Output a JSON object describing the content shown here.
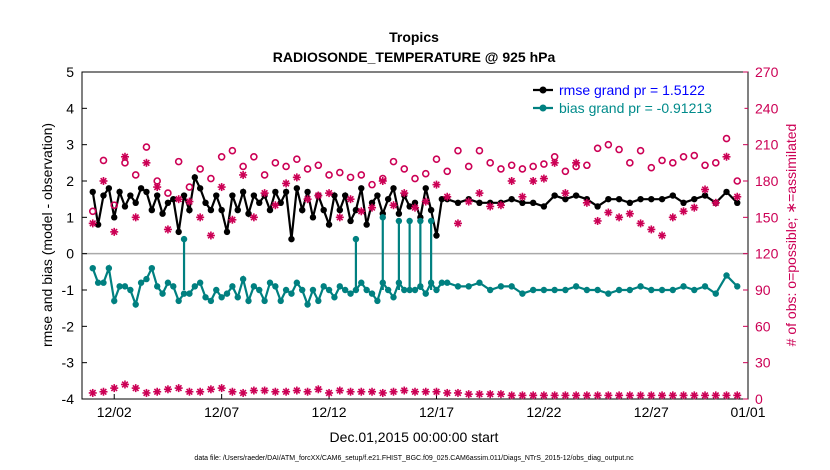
{
  "chart_data": {
    "type": "line",
    "title": "Tropics",
    "subtitle": "RADIOSONDE_TEMPERATURE @ 925 hPa",
    "xlabel": "Dec.01,2015 00:00:00 start",
    "ylabel_left": "rmse and bias (model - observation)",
    "ylabel_right": "# of obs: o=possible; ∗=assimilated",
    "footer": "data file: /Users/raeder/DAI/ATM_forcXX/CAM6_setup/f.e21.FHIST_BGC.f09_025.CAM6assim.011/Diags_NTrS_2015-12/obs_diag_output.nc",
    "x_range_days": [
      0.5,
      31.5
    ],
    "x_ticks": [
      {
        "x": 2,
        "label": "12/02"
      },
      {
        "x": 7,
        "label": "12/07"
      },
      {
        "x": 12,
        "label": "12/12"
      },
      {
        "x": 17,
        "label": "12/17"
      },
      {
        "x": 22,
        "label": "12/22"
      },
      {
        "x": 27,
        "label": "12/27"
      },
      {
        "x": 32,
        "label": "01/01"
      }
    ],
    "ylim_left": [
      -4,
      5
    ],
    "y_ticks_left": [
      -4,
      -3,
      -2,
      -1,
      0,
      1,
      2,
      3,
      4,
      5
    ],
    "ylim_right": [
      0,
      270
    ],
    "y_ticks_right": [
      0,
      30,
      60,
      90,
      120,
      150,
      180,
      210,
      240,
      270
    ],
    "legend": [
      {
        "label": "rmse grand pr = 1.5122",
        "color": "#0000ff",
        "series": "rmse"
      },
      {
        "label": "bias grand pr = -0.91213",
        "color": "#008b8b",
        "series": "bias"
      }
    ],
    "series": [
      {
        "name": "rmse",
        "color": "#000000",
        "x": [
          1,
          1.25,
          1.5,
          1.75,
          2,
          2.25,
          2.5,
          2.75,
          3,
          3.25,
          3.5,
          3.75,
          4,
          4.25,
          4.5,
          4.75,
          5,
          5.25,
          5.5,
          5.75,
          6,
          6.25,
          6.5,
          6.75,
          7,
          7.25,
          7.5,
          7.75,
          8,
          8.25,
          8.5,
          8.75,
          9,
          9.25,
          9.5,
          9.75,
          10,
          10.25,
          10.5,
          10.75,
          11,
          11.25,
          11.5,
          11.75,
          12,
          12.25,
          12.5,
          12.75,
          13,
          13.25,
          13.5,
          13.75,
          14,
          14.25,
          14.5,
          14.75,
          15,
          15.25,
          15.5,
          15.75,
          16,
          16.25,
          16.5,
          16.75,
          17,
          17.25,
          17.5,
          18,
          18.5,
          19,
          19.5,
          20,
          20.5,
          21,
          21.5,
          22,
          22.5,
          23,
          23.5,
          24,
          24.5,
          25,
          25.5,
          26,
          26.5,
          27,
          27.5,
          28,
          28.5,
          29,
          29.5,
          30,
          30.5,
          31
        ],
        "values": [
          1.7,
          0.8,
          1.6,
          1.8,
          1.0,
          1.7,
          1.3,
          1.6,
          1.4,
          1.8,
          1.7,
          1.2,
          1.6,
          1.1,
          1.4,
          1.5,
          0.6,
          1.6,
          1.2,
          2.1,
          1.8,
          1.4,
          1.2,
          1.6,
          1.2,
          0.6,
          1.6,
          1.2,
          1.7,
          1.1,
          1.6,
          1.4,
          1.6,
          1.2,
          1.7,
          1.4,
          1.7,
          0.4,
          1.8,
          1.2,
          1.7,
          1.0,
          1.6,
          1.2,
          0.8,
          1.6,
          1.2,
          1.6,
          0.9,
          1.2,
          1.8,
          0.8,
          1.4,
          1.6,
          1.1,
          1.5,
          1.8,
          1.1,
          1.6,
          1.3,
          1.4,
          1.0,
          1.8,
          1.2,
          0.5,
          1.5,
          1.5,
          1.4,
          1.5,
          1.4,
          1.4,
          1.4,
          1.5,
          1.4,
          1.4,
          1.3,
          1.6,
          1.5,
          1.6,
          1.5,
          1.3,
          1.5,
          1.5,
          1.4,
          1.5,
          1.5,
          1.5,
          1.6,
          1.4,
          1.5,
          1.6,
          1.4,
          1.7,
          1.4
        ]
      },
      {
        "name": "bias",
        "color": "#008080",
        "x": [
          1,
          1.25,
          1.5,
          1.75,
          2,
          2.25,
          2.5,
          2.75,
          3,
          3.25,
          3.5,
          3.75,
          4,
          4.25,
          4.5,
          4.75,
          5,
          5.25,
          5.5,
          5.75,
          6,
          6.25,
          6.5,
          6.75,
          7,
          7.25,
          7.5,
          7.75,
          8,
          8.25,
          8.5,
          8.75,
          9,
          9.25,
          9.5,
          9.75,
          10,
          10.25,
          10.5,
          10.75,
          11,
          11.25,
          11.5,
          11.75,
          12,
          12.25,
          12.5,
          12.75,
          13,
          13.25,
          13.5,
          13.75,
          14,
          14.25,
          14.5,
          14.75,
          15,
          15.25,
          15.5,
          15.75,
          16,
          16.25,
          16.5,
          16.75,
          17,
          17.25,
          17.5,
          18,
          18.5,
          19,
          19.5,
          20,
          20.5,
          21,
          21.5,
          22,
          22.5,
          23,
          23.5,
          24,
          24.5,
          25,
          25.5,
          26,
          26.5,
          27,
          27.5,
          28,
          28.5,
          29,
          29.5,
          30,
          30.5,
          31
        ],
        "values": [
          -0.4,
          -0.8,
          -0.8,
          -0.4,
          -1.3,
          -0.9,
          -0.9,
          -1.0,
          -1.4,
          -0.8,
          -0.7,
          -0.4,
          -0.9,
          -1.1,
          -0.8,
          -0.9,
          -1.3,
          -1.1,
          -1.1,
          -0.9,
          -0.8,
          -1.2,
          -1.3,
          -1.0,
          -1.2,
          -1.1,
          -0.9,
          -1.2,
          -0.7,
          -1.3,
          -0.9,
          -1.0,
          -1.3,
          -0.8,
          -0.9,
          -1.3,
          -1.0,
          -1.1,
          -0.8,
          -1.0,
          -1.4,
          -1.0,
          -1.3,
          -0.9,
          -1.0,
          -1.2,
          -0.9,
          -1.0,
          -1.1,
          -1.0,
          -0.8,
          -1.0,
          -1.1,
          -1.3,
          -0.8,
          -1.0,
          -1.2,
          -0.8,
          -1.0,
          -1.0,
          -1.0,
          -0.9,
          -1.1,
          -0.8,
          -1.0,
          -0.8,
          -0.8,
          -0.9,
          -0.9,
          -0.8,
          -1.0,
          -0.9,
          -0.9,
          -1.1,
          -1.0,
          -1.0,
          -1.0,
          -1.0,
          -0.9,
          -1.0,
          -1.0,
          -1.1,
          -1.0,
          -1.0,
          -0.9,
          -1.0,
          -1.0,
          -1.0,
          -0.9,
          -1.0,
          -0.9,
          -1.1,
          -0.6,
          -0.9
        ]
      },
      {
        "name": "bias-spikes",
        "color": "#008080",
        "points": [
          [
            5.25,
            0.4
          ],
          [
            13.25,
            0.4
          ],
          [
            14.5,
            1.0
          ],
          [
            15.25,
            0.9
          ],
          [
            15.75,
            0.9
          ],
          [
            16.25,
            0.9
          ],
          [
            16.75,
            0.9
          ]
        ]
      },
      {
        "name": "obs-possible",
        "color": "#cc0055",
        "marker": "o",
        "x": [
          1,
          1.5,
          2,
          2.5,
          3,
          3.5,
          4,
          4.5,
          5,
          5.5,
          6,
          6.5,
          7,
          7.5,
          8,
          8.5,
          9,
          9.5,
          10,
          10.5,
          11,
          11.5,
          12,
          12.5,
          13,
          13.5,
          14,
          14.5,
          15,
          15.5,
          16,
          16.5,
          17,
          17.5,
          18,
          18.5,
          19,
          19.5,
          20,
          20.5,
          21,
          21.5,
          22,
          22.5,
          23,
          23.5,
          24,
          24.5,
          25,
          25.5,
          26,
          26.5,
          27,
          27.5,
          28,
          28.5,
          29,
          29.5,
          30,
          30.5,
          31
        ],
        "values": [
          155,
          197,
          160,
          195,
          185,
          208,
          180,
          170,
          196,
          175,
          190,
          182,
          200,
          205,
          192,
          200,
          185,
          195,
          192,
          198,
          190,
          193,
          185,
          187,
          183,
          185,
          177,
          182,
          196,
          190,
          182,
          186,
          198,
          188,
          205,
          192,
          205,
          195,
          190,
          193,
          190,
          192,
          194,
          200,
          188,
          192,
          193,
          207,
          210,
          206,
          195,
          205,
          191,
          197,
          195,
          200,
          201,
          193,
          195,
          215,
          180
        ]
      },
      {
        "name": "obs-assimilated",
        "color": "#cc0055",
        "marker": "*",
        "x": [
          1,
          1.5,
          2,
          2.5,
          3,
          3.5,
          4,
          4.5,
          5,
          5.5,
          6,
          6.5,
          7,
          7.5,
          8,
          8.5,
          9,
          9.5,
          10,
          10.5,
          11,
          11.5,
          12,
          12.5,
          13,
          13.5,
          14,
          14.5,
          15,
          15.5,
          16,
          16.5,
          17,
          17.5,
          18,
          18.5,
          19,
          19.5,
          20,
          20.5,
          21,
          21.5,
          22,
          22.5,
          23,
          23.5,
          24,
          24.5,
          25,
          25.5,
          26,
          26.5,
          27,
          27.5,
          28,
          28.5,
          29,
          29.5,
          30,
          30.5,
          31
        ],
        "values": [
          145,
          180,
          138,
          200,
          150,
          195,
          175,
          140,
          165,
          163,
          150,
          135,
          175,
          148,
          185,
          150,
          170,
          160,
          178,
          183,
          165,
          168,
          170,
          150,
          165,
          155,
          158,
          180,
          160,
          170,
          158,
          163,
          177,
          167,
          145,
          163,
          170,
          159,
          160,
          180,
          167,
          180,
          182,
          195,
          170,
          195,
          162,
          147,
          154,
          150,
          153,
          145,
          140,
          135,
          150,
          155,
          158,
          173,
          162,
          200,
          167
        ]
      },
      {
        "name": "obs-low-assimilated",
        "color": "#cc0055",
        "marker": "*",
        "x": [
          1,
          1.5,
          2,
          2.5,
          3,
          3.5,
          4,
          4.5,
          5,
          5.5,
          6,
          6.5,
          7,
          7.5,
          8,
          8.5,
          9,
          9.5,
          10,
          10.5,
          11,
          11.5,
          12,
          12.5,
          13,
          13.5,
          14,
          14.5,
          15,
          15.5,
          16,
          16.5,
          17,
          17.5,
          18,
          18.5,
          19,
          19.5,
          20,
          20.5,
          21,
          21.5,
          22,
          22.5,
          23,
          23.5,
          24,
          24.5,
          25,
          25.5,
          26,
          26.5,
          27,
          27.5,
          28,
          28.5,
          29,
          29.5,
          30,
          30.5,
          31
        ],
        "values": [
          5,
          6,
          9,
          12,
          9,
          5,
          6,
          8,
          9,
          6,
          6,
          8,
          9,
          6,
          5,
          7,
          7,
          6,
          6,
          7,
          6,
          8,
          5,
          7,
          6,
          6,
          6,
          5,
          6,
          7,
          6,
          6,
          6,
          5,
          5,
          4,
          4,
          4,
          4,
          3,
          3,
          3,
          3,
          3,
          3,
          3,
          3,
          3,
          3,
          3,
          3,
          3,
          3,
          3,
          3,
          3,
          3,
          3,
          3,
          3,
          3
        ]
      }
    ]
  }
}
